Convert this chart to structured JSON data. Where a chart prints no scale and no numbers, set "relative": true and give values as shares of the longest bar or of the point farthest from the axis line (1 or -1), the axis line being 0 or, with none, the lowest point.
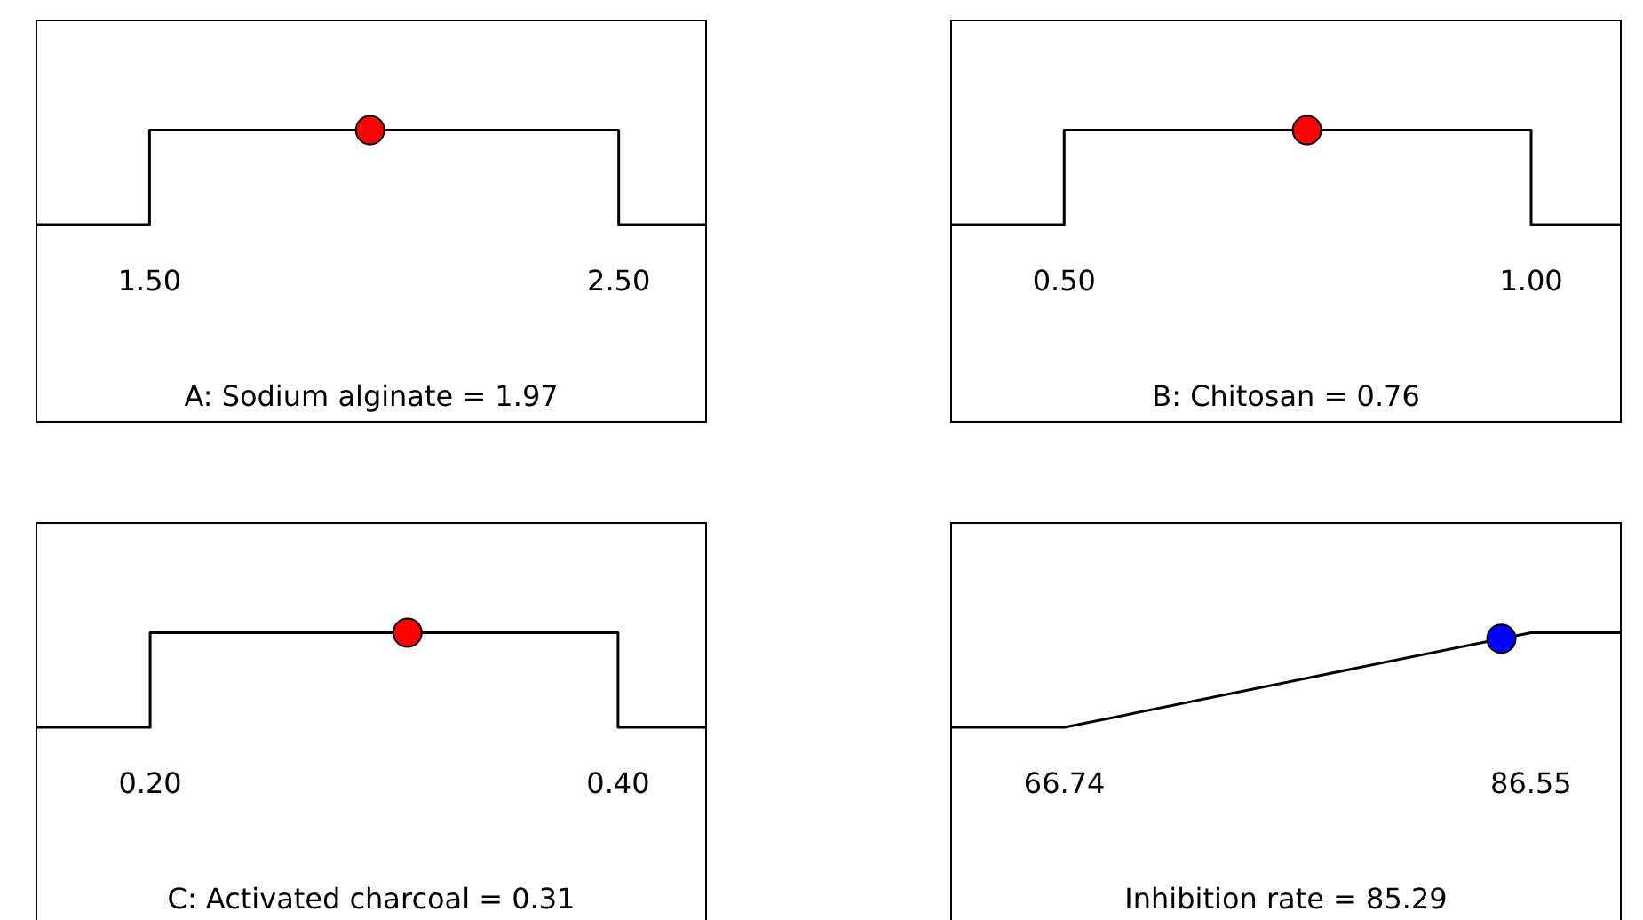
{
  "chart_data": [
    {
      "type": "line",
      "relative": true,
      "xlabel": "A: Sodium alginate = 1.97",
      "xlim": [
        1.257,
        2.688
      ],
      "xticks": [
        {
          "value": 1.5,
          "label": "1.50"
        },
        {
          "value": 2.5,
          "label": "2.50"
        }
      ],
      "grid": false,
      "legend": false,
      "tick_labels": "x",
      "series": [
        {
          "type": "line",
          "color": "#000000",
          "marker": "none",
          "x": [
            1.257,
            1.5,
            1.5,
            2.5,
            2.5,
            2.688
          ],
          "values": [
            0,
            0,
            1,
            1,
            0,
            0
          ]
        },
        {
          "type": "scatter",
          "color": "#ff0000",
          "marker": "circle",
          "x": [
            1.97
          ],
          "values": [
            1
          ]
        }
      ]
    },
    {
      "type": "line",
      "relative": true,
      "xlabel": "B: Chitosan = 0.76",
      "xlim": [
        0.378,
        1.097
      ],
      "xticks": [
        {
          "value": 0.5,
          "label": "0.50"
        },
        {
          "value": 1.0,
          "label": "1.00"
        }
      ],
      "grid": false,
      "legend": false,
      "tick_labels": "x",
      "series": [
        {
          "type": "line",
          "color": "#000000",
          "marker": "none",
          "x": [
            0.378,
            0.5,
            0.5,
            1.0,
            1.0,
            1.097
          ],
          "values": [
            0,
            0,
            1,
            1,
            0,
            0
          ]
        },
        {
          "type": "scatter",
          "color": "#ff0000",
          "marker": "circle",
          "x": [
            0.76
          ],
          "values": [
            1
          ]
        }
      ]
    },
    {
      "type": "line",
      "relative": true,
      "xlabel": "C: Activated charcoal = 0.31",
      "xlim": [
        0.151,
        0.438
      ],
      "xticks": [
        {
          "value": 0.2,
          "label": "0.20"
        },
        {
          "value": 0.4,
          "label": "0.40"
        }
      ],
      "grid": false,
      "legend": false,
      "tick_labels": "x",
      "series": [
        {
          "type": "line",
          "color": "#000000",
          "marker": "none",
          "x": [
            0.151,
            0.2,
            0.2,
            0.4,
            0.4,
            0.438
          ],
          "values": [
            0,
            0,
            1,
            1,
            0,
            0
          ]
        },
        {
          "type": "scatter",
          "color": "#ff0000",
          "marker": "circle",
          "x": [
            0.31
          ],
          "values": [
            1
          ]
        }
      ]
    },
    {
      "type": "line",
      "relative": true,
      "xlabel": "Inhibition rate = 85.29",
      "xlim": [
        61.89,
        90.4
      ],
      "xticks": [
        {
          "value": 66.74,
          "label": "66.74"
        },
        {
          "value": 86.55,
          "label": "86.55"
        }
      ],
      "grid": false,
      "legend": false,
      "tick_labels": "x",
      "series": [
        {
          "type": "line",
          "color": "#000000",
          "marker": "none",
          "x": [
            61.89,
            66.74,
            86.55,
            90.4
          ],
          "values": [
            0,
            0,
            1,
            1
          ]
        },
        {
          "type": "scatter",
          "color": "#0000ff",
          "marker": "circle",
          "x": [
            85.29
          ],
          "values": [
            0.936
          ]
        }
      ]
    }
  ]
}
